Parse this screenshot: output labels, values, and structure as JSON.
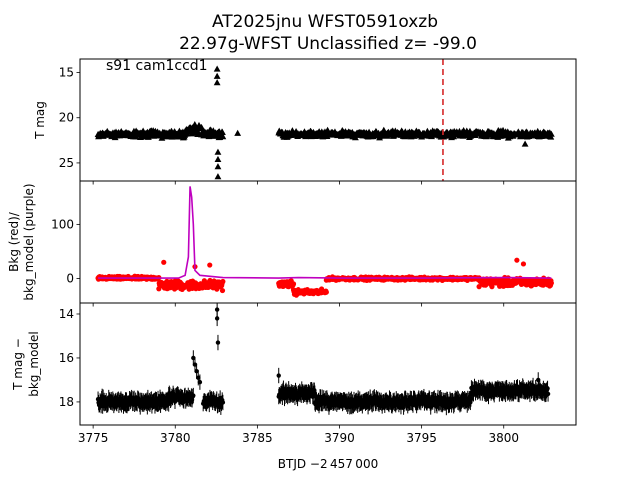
{
  "chart_data": {
    "title": [
      "AT2025jnu  WFST0591oxzb",
      "22.97g-WFST Unclassified z= -99.0"
    ],
    "xlabel": "BTJD −2 457 000",
    "xlim": [
      3774.2,
      3804.4
    ],
    "xticks": [
      3775,
      3780,
      3785,
      3790,
      3795,
      3800
    ],
    "xtick_labels": [
      "3775",
      "3780",
      "3785",
      "3790",
      "3795",
      "3800"
    ],
    "panels": [
      {
        "id": "tmag",
        "type": "scatter",
        "ylabel": "T mag",
        "ylim": [
          27.0,
          13.5
        ],
        "y_inverted": true,
        "yticks": [
          15,
          20,
          25
        ],
        "ytick_labels": [
          "15",
          "20",
          "25"
        ],
        "annotation": "s91 cam1ccd1",
        "vline": {
          "x": 3796.3,
          "color": "#d62728",
          "style": "dashed"
        },
        "series": [
          {
            "marker": "triangle",
            "color": "#000000",
            "segments": [
              {
                "x_start": 3775.3,
                "x_end": 3780.6,
                "y_center": 21.8,
                "y_spread": 0.5,
                "count": 200
              },
              {
                "x_start": 3780.6,
                "x_end": 3781.6,
                "y_center": 21.3,
                "y_spread": 0.7,
                "count": 40
              },
              {
                "x_start": 3781.6,
                "x_end": 3782.9,
                "y_center": 21.8,
                "y_spread": 0.5,
                "count": 50
              },
              {
                "x_start": 3786.3,
                "x_end": 3802.9,
                "y_center": 21.8,
                "y_spread": 0.5,
                "count": 520
              }
            ],
            "points": [
              {
                "x": 3782.55,
                "y": 14.6
              },
              {
                "x": 3782.55,
                "y": 15.4
              },
              {
                "x": 3782.55,
                "y": 16.1
              },
              {
                "x": 3782.6,
                "y": 23.8
              },
              {
                "x": 3782.6,
                "y": 24.6
              },
              {
                "x": 3782.6,
                "y": 25.4
              },
              {
                "x": 3782.6,
                "y": 26.5
              },
              {
                "x": 3783.8,
                "y": 21.7
              },
              {
                "x": 3801.3,
                "y": 22.9
              }
            ]
          }
        ]
      },
      {
        "id": "bkg",
        "type": "line+scatter",
        "ylabel": [
          "Bkg (red)/",
          "bkg_model (purple)"
        ],
        "ylim": [
          -45,
          180
        ],
        "yticks": [
          0,
          100
        ],
        "ytick_labels": [
          "0",
          "100"
        ],
        "series": [
          {
            "kind": "scatter",
            "color": "#ff0000",
            "segments": [
              {
                "x_start": 3775.3,
                "x_end": 3779.0,
                "y_center": 1,
                "y_spread": 4,
                "count": 150
              },
              {
                "x_start": 3779.0,
                "x_end": 3782.9,
                "y_center": -12,
                "y_spread": 12,
                "count": 160
              },
              {
                "x_start": 3786.3,
                "x_end": 3787.2,
                "y_center": -10,
                "y_spread": 8,
                "count": 40
              },
              {
                "x_start": 3787.2,
                "x_end": 3789.2,
                "y_center": -25,
                "y_spread": 7,
                "count": 70
              },
              {
                "x_start": 3789.2,
                "x_end": 3798.5,
                "y_center": 0,
                "y_spread": 4,
                "count": 300
              },
              {
                "x_start": 3798.5,
                "x_end": 3802.9,
                "y_center": -7,
                "y_spread": 11,
                "count": 170
              }
            ],
            "points": [
              {
                "x": 3779.3,
                "y": 30
              },
              {
                "x": 3781.2,
                "y": 22
              },
              {
                "x": 3782.1,
                "y": 25
              },
              {
                "x": 3800.8,
                "y": 34
              },
              {
                "x": 3801.2,
                "y": 27
              }
            ]
          },
          {
            "kind": "line",
            "color": "#bf00bf",
            "points": [
              [
                3775.3,
                1
              ],
              [
                3780.2,
                1
              ],
              [
                3780.6,
                6
              ],
              [
                3780.8,
                40
              ],
              [
                3780.9,
                170
              ],
              [
                3781.0,
                150
              ],
              [
                3781.1,
                100
              ],
              [
                3781.2,
                15
              ],
              [
                3781.5,
                6
              ],
              [
                3782.9,
                2
              ],
              [
                3786.3,
                1
              ],
              [
                3787.5,
                2
              ],
              [
                3790.0,
                1
              ],
              [
                3795.0,
                1
              ],
              [
                3800.0,
                2
              ],
              [
                3802.9,
                1
              ]
            ]
          }
        ]
      },
      {
        "id": "diff",
        "type": "errorbar",
        "ylabel": [
          "T mag −",
          "bkg_model"
        ],
        "ylim": [
          19.05,
          13.5
        ],
        "y_inverted": true,
        "yticks": [
          14,
          16,
          18
        ],
        "ytick_labels": [
          "14",
          "16",
          "18"
        ],
        "series": [
          {
            "kind": "errorbar",
            "color": "#000000",
            "error": 0.35,
            "segments": [
              {
                "x_start": 3775.3,
                "x_end": 3779.6,
                "y_center": 18.0,
                "y_spread": 0.3,
                "count": 140
              },
              {
                "x_start": 3779.6,
                "x_end": 3781.1,
                "y_center": 17.8,
                "y_spread": 0.3,
                "count": 40
              },
              {
                "x_start": 3781.7,
                "x_end": 3782.9,
                "y_center": 18.0,
                "y_spread": 0.3,
                "count": 30
              },
              {
                "x_start": 3786.3,
                "x_end": 3788.5,
                "y_center": 17.6,
                "y_spread": 0.3,
                "count": 70
              },
              {
                "x_start": 3788.5,
                "x_end": 3798.0,
                "y_center": 18.0,
                "y_spread": 0.3,
                "count": 300
              },
              {
                "x_start": 3798.0,
                "x_end": 3802.7,
                "y_center": 17.5,
                "y_spread": 0.3,
                "count": 150
              }
            ],
            "points": [
              {
                "x": 3781.1,
                "y": 16.0
              },
              {
                "x": 3781.2,
                "y": 16.3
              },
              {
                "x": 3781.3,
                "y": 16.6
              },
              {
                "x": 3781.4,
                "y": 16.9
              },
              {
                "x": 3781.5,
                "y": 17.1
              },
              {
                "x": 3782.55,
                "y": 13.8
              },
              {
                "x": 3782.55,
                "y": 14.2
              },
              {
                "x": 3782.6,
                "y": 15.3
              },
              {
                "x": 3786.3,
                "y": 16.8
              },
              {
                "x": 3802.1,
                "y": 17.0
              }
            ]
          }
        ]
      }
    ]
  }
}
